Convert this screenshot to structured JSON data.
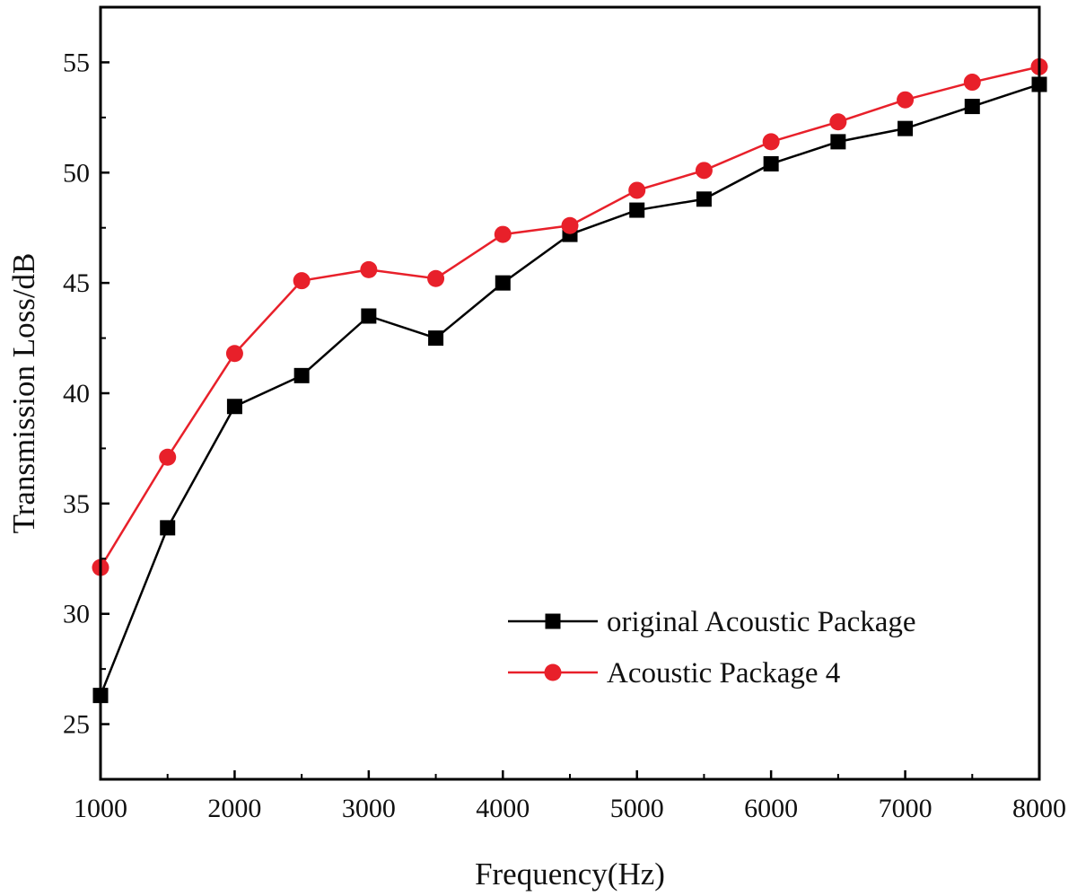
{
  "chart_data": {
    "type": "line",
    "xlabel": "Frequency(Hz)",
    "ylabel": "Transmission Loss/dB",
    "xlim": [
      1000,
      8000
    ],
    "ylim": [
      22.5,
      57.5
    ],
    "xticks": [
      1000,
      2000,
      3000,
      4000,
      5000,
      6000,
      7000,
      8000
    ],
    "yticks": [
      25,
      30,
      35,
      40,
      45,
      50,
      55
    ],
    "grid": false,
    "legend_position": "lower-right",
    "x": [
      1000,
      1500,
      2000,
      2500,
      3000,
      3500,
      4000,
      4500,
      5000,
      5500,
      6000,
      6500,
      7000,
      7500,
      8000
    ],
    "series": [
      {
        "name": "original Acoustic Package",
        "color": "#000000",
        "marker": "square",
        "values": [
          26.3,
          33.9,
          39.4,
          40.8,
          43.5,
          42.5,
          45.0,
          47.2,
          48.3,
          48.8,
          50.4,
          51.4,
          52.0,
          53.0,
          54.0
        ]
      },
      {
        "name": "Acoustic Package 4",
        "color": "#e8202a",
        "marker": "circle",
        "values": [
          32.1,
          37.1,
          41.8,
          45.1,
          45.6,
          45.2,
          47.2,
          47.6,
          49.2,
          50.1,
          51.4,
          52.3,
          53.3,
          54.1,
          54.8
        ]
      }
    ]
  }
}
